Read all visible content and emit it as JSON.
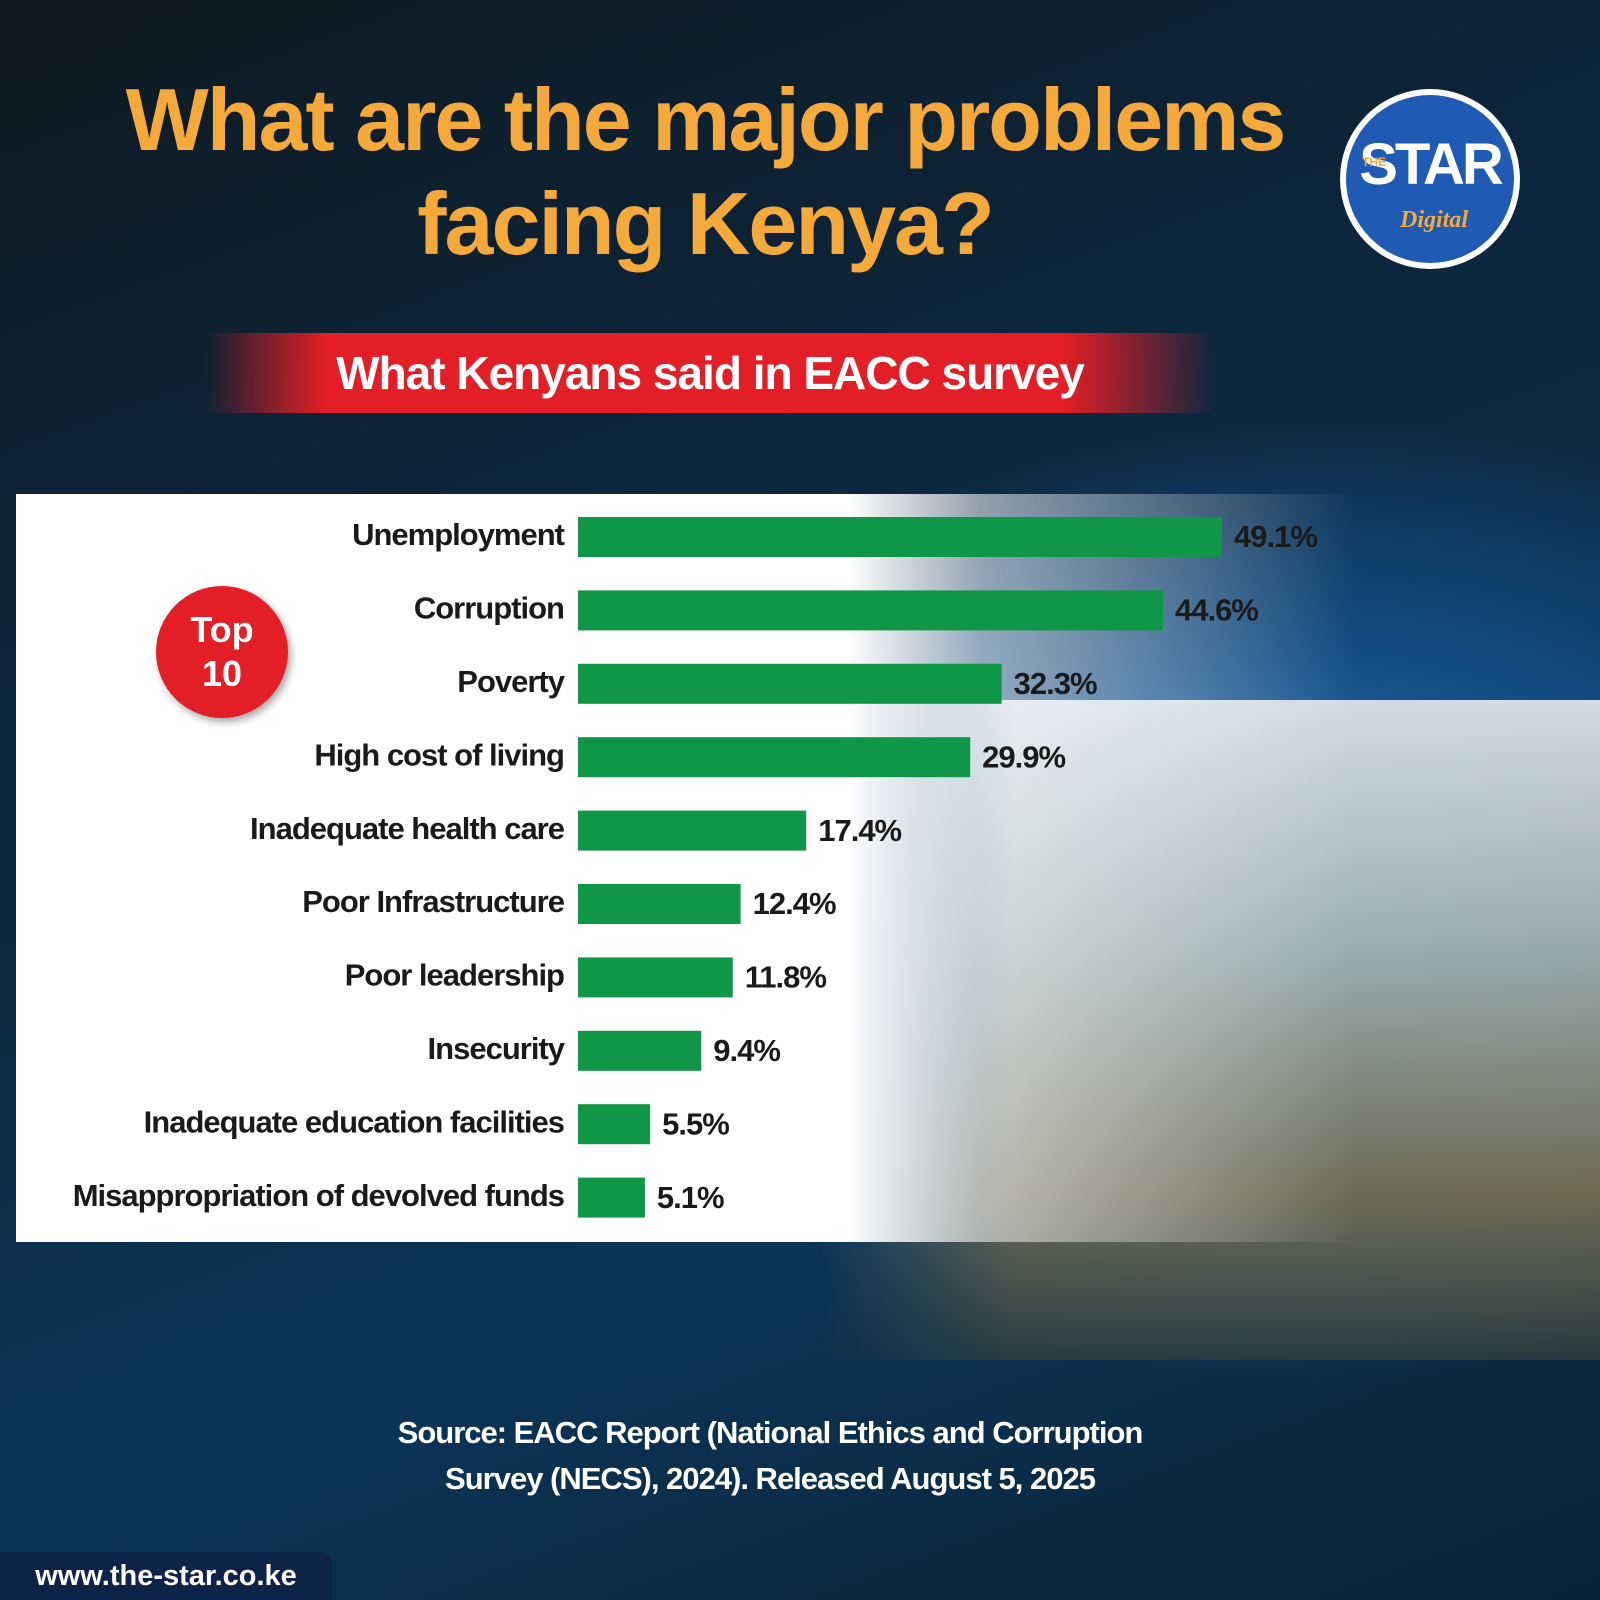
{
  "header": {
    "title": "What are the major problems facing Kenya?",
    "subtitle": "What Kenyans said in EACC survey",
    "logo": {
      "small": "THE",
      "name": "STAR",
      "tag": "Digital"
    }
  },
  "badge": "Top 10",
  "chart_data": {
    "type": "bar",
    "orientation": "horizontal",
    "categories": [
      "Unemployment",
      "Corruption",
      "Poverty",
      "High cost of living",
      "Inadequate health care",
      "Poor Infrastructure",
      "Poor leadership",
      "Insecurity",
      "Inadequate education facilities",
      "Misappropriation of devolved funds"
    ],
    "values": [
      49.1,
      44.6,
      32.3,
      29.9,
      17.4,
      12.4,
      11.8,
      9.4,
      5.5,
      5.1
    ],
    "value_labels": [
      "49.1%",
      "44.6%",
      "32.3%",
      "29.9%",
      "17.4%",
      "12.4%",
      "11.8%",
      "9.4%",
      "5.5%",
      "5.1%"
    ],
    "color": "#109647"
  },
  "footer": {
    "source": "Source: EACC Report (National Ethics and Corruption Survey (NECS), 2024). Released August 5, 2025",
    "website": "www.the-star.co.ke"
  }
}
